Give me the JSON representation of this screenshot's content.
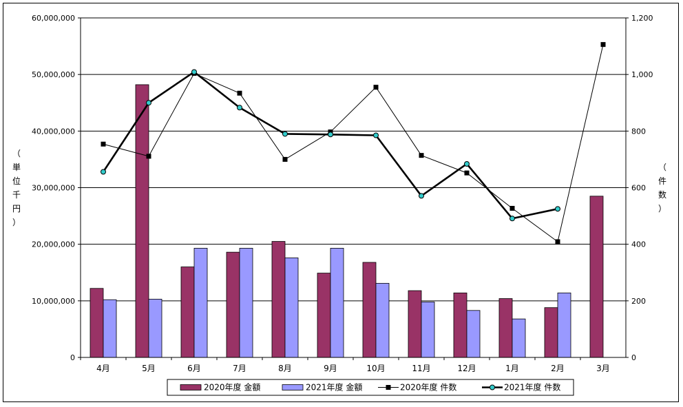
{
  "chart_data": {
    "type": "bar+line",
    "categories": [
      "4月",
      "5月",
      "6月",
      "7月",
      "8月",
      "9月",
      "10月",
      "11月",
      "12月",
      "1月",
      "2月",
      "3月"
    ],
    "y_left": {
      "label_chars": [
        "（",
        "単",
        "位",
        "千",
        "円",
        "）"
      ],
      "ticks": [
        "0",
        "10,000,000",
        "20,000,000",
        "30,000,000",
        "40,000,000",
        "50,000,000",
        "60,000,000"
      ],
      "min": 0,
      "max": 60000000
    },
    "y_right": {
      "label_chars": [
        "（",
        "件",
        "数",
        "）"
      ],
      "ticks": [
        "0",
        "200",
        "400",
        "600",
        "800",
        "1,000",
        "1,200"
      ],
      "min": 0,
      "max": 1200
    },
    "series": [
      {
        "name": "2020年度 金額",
        "kind": "bar",
        "axis": "left",
        "color": "#993366",
        "values": [
          12200000,
          48200000,
          16000000,
          18600000,
          20500000,
          14900000,
          16800000,
          11800000,
          11400000,
          10400000,
          8800000,
          28500000
        ]
      },
      {
        "name": "2021年度 金額",
        "kind": "bar",
        "axis": "left",
        "color": "#9999ff",
        "values": [
          10200000,
          10300000,
          19300000,
          19300000,
          17600000,
          19300000,
          13100000,
          9800000,
          8300000,
          6800000,
          11400000,
          null
        ]
      },
      {
        "name": "2020年度 件数",
        "kind": "line",
        "axis": "right",
        "color": "#000000",
        "marker": "square",
        "values": [
          754,
          711,
          1004,
          934,
          700,
          797,
          955,
          714,
          652,
          527,
          409,
          1106
        ]
      },
      {
        "name": "2021年度 件数",
        "kind": "line",
        "axis": "right",
        "color": "#000000",
        "marker": "circle",
        "marker_color": "#33cccc",
        "values": [
          656,
          900,
          1009,
          883,
          790,
          788,
          785,
          571,
          684,
          491,
          525,
          null
        ]
      }
    ],
    "grid": true,
    "legend_position": "bottom"
  }
}
